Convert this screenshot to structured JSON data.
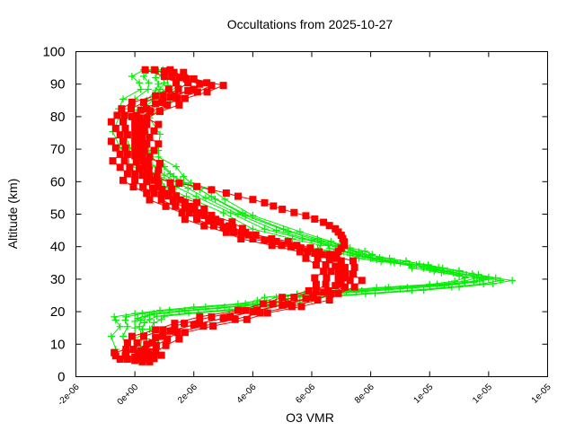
{
  "chart_data": {
    "type": "line",
    "title": "Occultations from 2025-10-27",
    "xlabel": "O3 VMR",
    "ylabel": "Altitude (km)",
    "xlim": [
      -2e-06,
      1.4e-05
    ],
    "ylim": [
      0,
      100
    ],
    "x_ticks": [
      -2e-06,
      0,
      2e-06,
      4e-06,
      6e-06,
      8e-06,
      1e-05,
      1.2e-05,
      1.4e-05
    ],
    "x_tick_labels": [
      "-2e-06",
      "0e+00",
      "2e-06",
      "4e-06",
      "6e-06",
      "8e-06",
      "1e-05",
      "1e-05",
      "1e-05"
    ],
    "y_ticks": [
      0,
      10,
      20,
      30,
      40,
      50,
      60,
      70,
      80,
      90,
      100
    ],
    "y_tick_labels": [
      "0",
      "10",
      "20",
      "30",
      "40",
      "50",
      "60",
      "70",
      "80",
      "90",
      "100"
    ],
    "grid": false,
    "legend": null,
    "series": [
      {
        "name": "profile-green",
        "color": "#00ee00",
        "marker": "plus",
        "profiles": [
          {
            "altitude": [
              5,
              8,
              12,
              15,
              17,
              18,
              19,
              20,
              21,
              22,
              23,
              24,
              25,
              26,
              27,
              28,
              29,
              30,
              31,
              32,
              33,
              34,
              35,
              36,
              37,
              38,
              39,
              40,
              42,
              45,
              50,
              55,
              58,
              60,
              62,
              65,
              68,
              70,
              75,
              80,
              82,
              85,
              88,
              90,
              92,
              94
            ],
            "vmr": [
              0.0,
              0.0,
              0.0,
              0.0,
              0.0,
              1e-07,
              5e-07,
              1.5e-06,
              2.8e-06,
              4e-06,
              4.8e-06,
              5.2e-06,
              6e-06,
              7.5e-06,
              9e-06,
              1.05e-05,
              1.15e-05,
              1.2e-05,
              1.15e-05,
              1.08e-05,
              1.02e-05,
              9.8e-06,
              9e-06,
              8.4e-06,
              7.8e-06,
              7.4e-06,
              7e-06,
              6.8e-06,
              6e-06,
              4.8e-06,
              3.5e-06,
              2.4e-06,
              1.8e-06,
              1.4e-06,
              1e-06,
              6e-07,
              3e-07,
              1.5e-07,
              5e-08,
              0.0,
              1e-07,
              4e-07,
              7e-07,
              8e-07,
              7e-07,
              8e-07
            ]
          },
          {
            "altitude": [
              26,
              27,
              28,
              29,
              30,
              31,
              32,
              33,
              34,
              35,
              36,
              37,
              38,
              39,
              40
            ],
            "vmr": [
              6.8e-06,
              8.5e-06,
              1e-05,
              1.12e-05,
              1.18e-05,
              1.1e-05,
              1.04e-05,
              1e-05,
              9.4e-06,
              8.8e-06,
              8.2e-06,
              7.6e-06,
              7.3e-06,
              7e-06,
              6.9e-06
            ]
          }
        ]
      },
      {
        "name": "profile-red",
        "color": "#ff0000",
        "marker": "square",
        "profiles": [
          {
            "altitude": [
              5,
              6,
              7,
              8,
              10,
              12,
              14,
              16,
              18,
              20,
              22,
              24,
              26,
              28,
              30,
              32,
              34,
              36,
              38,
              40,
              42,
              44,
              46,
              48,
              50,
              52,
              54,
              56,
              58,
              60,
              62,
              64,
              66,
              68,
              70,
              72,
              74,
              76,
              78,
              80,
              82,
              84,
              86,
              88,
              90,
              92,
              94
            ],
            "vmr": [
              0.0,
              0.0,
              1e-07,
              2e-07,
              4e-07,
              7e-07,
              1.2e-06,
              2e-06,
              3e-06,
              4e-06,
              5e-06,
              5.8e-06,
              6.4e-06,
              6.8e-06,
              6.9e-06,
              6.9e-06,
              6.8e-06,
              6.6e-06,
              6.1e-06,
              5.3e-06,
              4.4e-06,
              3.6e-06,
              3e-06,
              2.5e-06,
              2.1e-06,
              1.7e-06,
              1.3e-06,
              9e-07,
              6e-07,
              4e-07,
              2.5e-07,
              1.5e-07,
              5e-08,
              0.0,
              0.0,
              0.0,
              0.0,
              0.0,
              0.0,
              -1e-07,
              2e-07,
              7e-07,
              1.2e-06,
              1.8e-06,
              2.2e-06,
              1.5e-06,
              1e-06
            ]
          },
          {
            "altitude": [
              59.5,
              58.5,
              57.5,
              56.5,
              55.5,
              54.5,
              53.5,
              52.5,
              51.5,
              50.5,
              49.5,
              48.5,
              47.5,
              46.5,
              45.5,
              44.5,
              43.5,
              42.5,
              41.5,
              40.5,
              39.5,
              38.5,
              37.5
            ],
            "vmr": [
              1.5e-06,
              2.1e-06,
              2.6e-06,
              3.1e-06,
              3.5e-06,
              4e-06,
              4.4e-06,
              4.7e-06,
              5e-06,
              5.4e-06,
              5.8e-06,
              6.1e-06,
              6.4e-06,
              6.6e-06,
              6.8e-06,
              6.9e-06,
              7e-06,
              7.05e-06,
              7.1e-06,
              7.1e-06,
              7e-06,
              6.9e-06,
              6.8e-06
            ]
          }
        ]
      }
    ]
  }
}
